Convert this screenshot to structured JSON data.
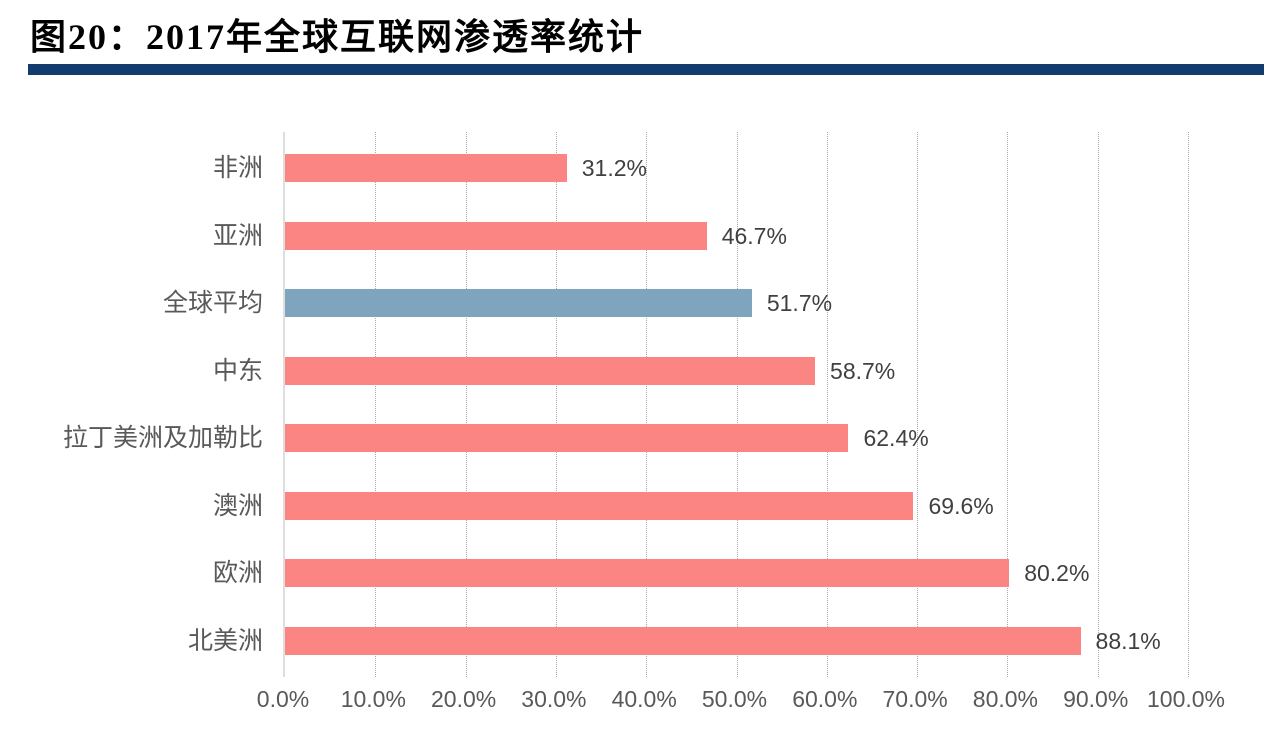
{
  "figure": {
    "title": "图20：2017年全球互联网渗透率统计"
  },
  "colors": {
    "title_rule": "#133c6e",
    "bar": "#fa8582",
    "highlight_bar": "#7fa4be",
    "gridline": "#a8a8a8",
    "axis_line": "#dedede",
    "category_text": "#595959",
    "value_text": "#404040"
  },
  "chart_data": {
    "type": "bar",
    "orientation": "horizontal",
    "title": "2017年全球互联网渗透率统计",
    "categories": [
      "非洲",
      "亚洲",
      "全球平均",
      "中东",
      "拉丁美洲及加勒比",
      "澳洲",
      "欧洲",
      "北美洲"
    ],
    "values": [
      31.2,
      46.7,
      51.7,
      58.7,
      62.4,
      69.6,
      80.2,
      88.1
    ],
    "value_labels": [
      "31.2%",
      "46.7%",
      "51.7%",
      "58.7%",
      "62.4%",
      "69.6%",
      "80.2%",
      "88.1%"
    ],
    "highlight_category": "全球平均",
    "highlight_index": 2,
    "x_ticks": [
      "0.0%",
      "10.0%",
      "20.0%",
      "30.0%",
      "40.0%",
      "50.0%",
      "60.0%",
      "70.0%",
      "80.0%",
      "90.0%",
      "100.0%"
    ],
    "x_tick_values": [
      0,
      10,
      20,
      30,
      40,
      50,
      60,
      70,
      80,
      90,
      100
    ],
    "xlim": [
      0,
      100
    ],
    "xlabel": "",
    "ylabel": "",
    "grid": "vertical-dotted",
    "legend": "none"
  }
}
